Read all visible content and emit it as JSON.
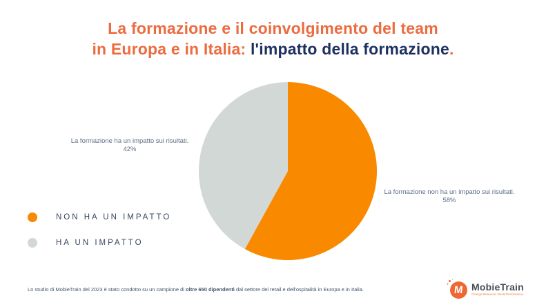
{
  "title": {
    "line1": "La formazione e il coinvolgimento del team",
    "line2_orange": "in Europa e in Italia: ",
    "line2_navy": "l'impatto della formazione",
    "line2_period": "."
  },
  "chart_data": {
    "type": "pie",
    "title": "L'impatto della formazione",
    "start_angle_deg": 0,
    "direction": "clockwise",
    "legend_position": "bottom-left",
    "slices": [
      {
        "label": "NON HA UN IMPATTO",
        "description": "La formazione non ha un impatto sui risultati.",
        "value": 58,
        "percent_label": "58%",
        "color": "#F98A00"
      },
      {
        "label": "HA UN IMPATTO",
        "description": "La formazione ha un impatto sui risultati.",
        "value": 42,
        "percent_label": "42%",
        "color": "#D2D8D6"
      }
    ]
  },
  "annotations": {
    "left": {
      "line1": "La formazione ha un impatto sui risultati.",
      "line2": "42%"
    },
    "right": {
      "line1": "La formazione non ha un impatto sui risultati.",
      "line2": "58%"
    }
  },
  "legend": [
    {
      "label": "NON HA UN IMPATTO",
      "color": "#F98A00"
    },
    {
      "label": "HA UN IMPATTO",
      "color": "#D2D8D6"
    }
  ],
  "footer": {
    "text_before": "Lo studio di MobieTrain del 2023 è stato condotto su un campione di ",
    "text_bold": "oltre 650 dipendenti",
    "text_after": " dal settore del retail e dell'ospitalità in Europa e in Italia."
  },
  "logo": {
    "name": "MobieTrain",
    "tagline": "Change Behaviour. Boost Performance.",
    "monogram": "M"
  },
  "colors": {
    "title_orange": "#EC6B3F",
    "title_navy": "#1D3160",
    "pie_orange": "#F98A00",
    "pie_gray": "#D2D8D6",
    "annotation_text": "#5E6E85",
    "legend_text": "#36465F",
    "footer_text": "#44546B",
    "logo_circle": "#EE6833"
  }
}
